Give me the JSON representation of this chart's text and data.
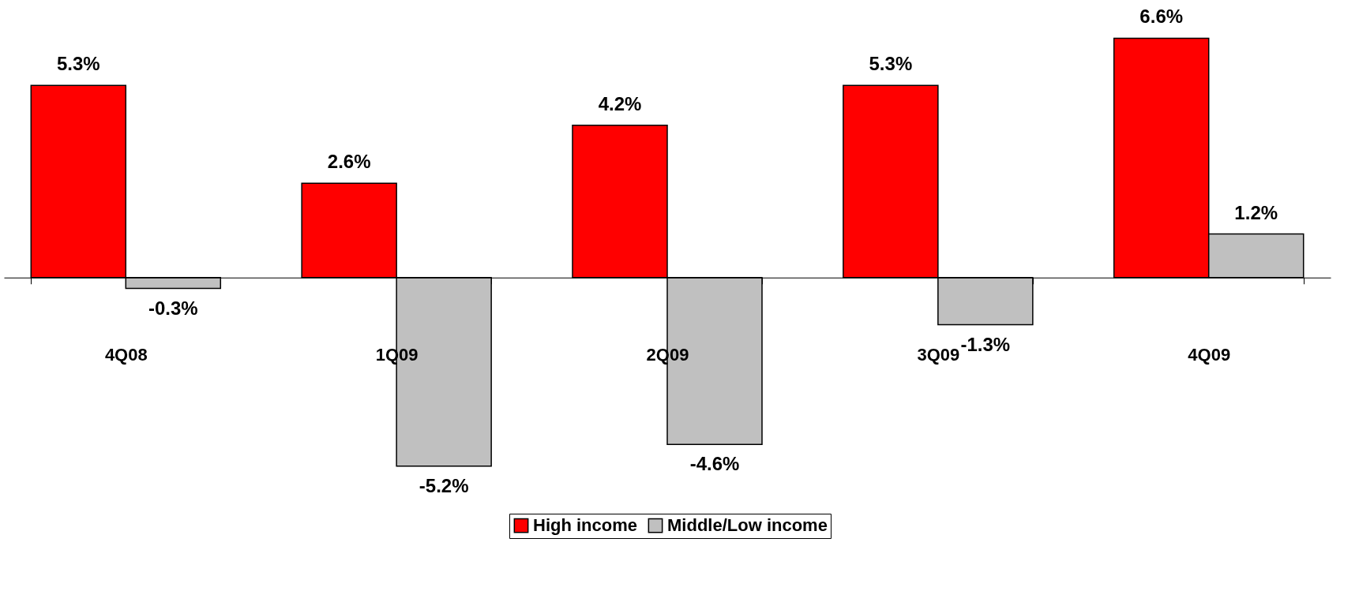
{
  "chart_data": {
    "type": "bar",
    "categories": [
      "4Q08",
      "1Q09",
      "2Q09",
      "3Q09",
      "4Q09"
    ],
    "series": [
      {
        "name": "High income",
        "color": "#ff0000",
        "values": [
          5.3,
          2.6,
          4.2,
          5.3,
          6.6
        ],
        "value_labels": [
          "5.3%",
          "2.6%",
          "4.2%",
          "5.3%",
          "6.6%"
        ]
      },
      {
        "name": "Middle/Low income",
        "color": "#c0c0c0",
        "values": [
          -0.3,
          -5.2,
          -4.6,
          -1.3,
          1.2
        ],
        "value_labels": [
          "-0.3%",
          "-5.2%",
          "-4.6%",
          "-1.3%",
          "1.2%"
        ]
      }
    ],
    "legend": "bottom",
    "grid": false,
    "tick_labels": "x"
  }
}
